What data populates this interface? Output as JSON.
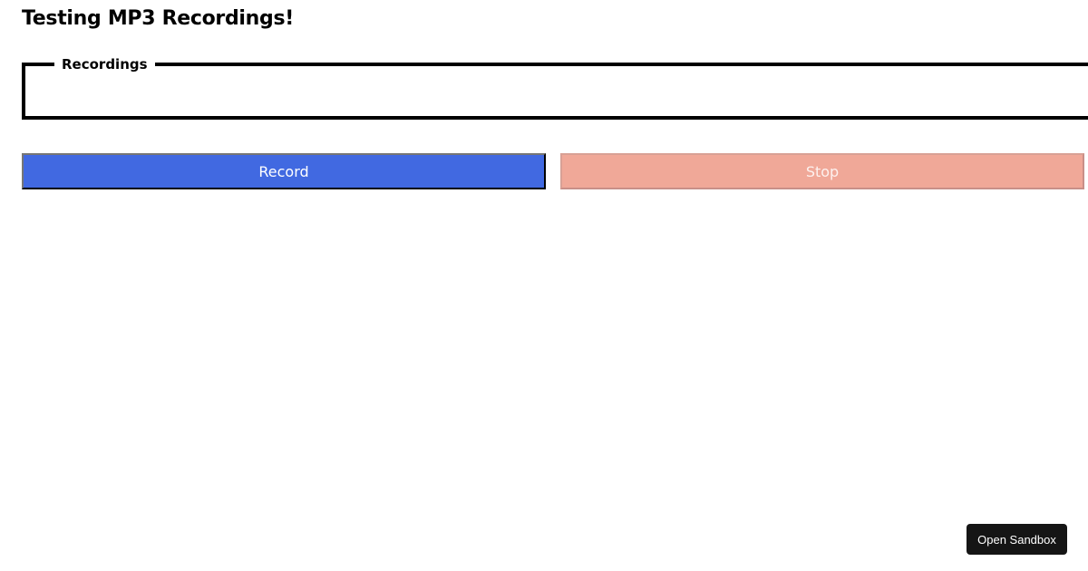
{
  "page": {
    "title": "Testing MP3 Recordings!"
  },
  "recordings": {
    "legend": "Recordings"
  },
  "controls": {
    "record_label": "Record",
    "stop_label": "Stop",
    "stop_disabled": true
  },
  "sandbox": {
    "label": "Open Sandbox"
  },
  "colors": {
    "record": "#4169e1",
    "stop": "#f0a898"
  }
}
